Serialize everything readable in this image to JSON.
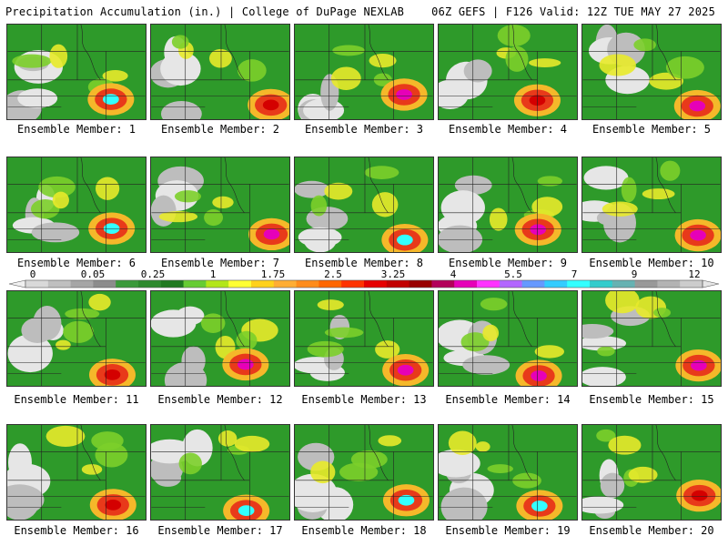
{
  "header": {
    "left_title": "Precipitation Accumulation (in.) | College of DuPage NEXLAB",
    "right_title": "06Z GEFS | F126 Valid: 12Z TUE MAY 27 2025"
  },
  "member_prefix": "Ensemble Member: ",
  "members": [
    {
      "label": "Ensemble Member: 1",
      "max_level": "cyan"
    },
    {
      "label": "Ensemble Member: 2",
      "max_level": "red"
    },
    {
      "label": "Ensemble Member: 3",
      "max_level": "magenta"
    },
    {
      "label": "Ensemble Member: 4",
      "max_level": "red"
    },
    {
      "label": "Ensemble Member: 5",
      "max_level": "magenta"
    },
    {
      "label": "Ensemble Member: 6",
      "max_level": "cyan"
    },
    {
      "label": "Ensemble Member: 7",
      "max_level": "magenta"
    },
    {
      "label": "Ensemble Member: 8",
      "max_level": "cyan"
    },
    {
      "label": "Ensemble Member: 9",
      "max_level": "magenta"
    },
    {
      "label": "Ensemble Member: 10",
      "max_level": "magenta"
    },
    {
      "label": "Ensemble Member: 11",
      "max_level": "red"
    },
    {
      "label": "Ensemble Member: 12",
      "max_level": "magenta"
    },
    {
      "label": "Ensemble Member: 13",
      "max_level": "magenta"
    },
    {
      "label": "Ensemble Member: 14",
      "max_level": "magenta"
    },
    {
      "label": "Ensemble Member: 15",
      "max_level": "magenta"
    },
    {
      "label": "Ensemble Member: 16",
      "max_level": "red"
    },
    {
      "label": "Ensemble Member: 17",
      "max_level": "cyan"
    },
    {
      "label": "Ensemble Member: 18",
      "max_level": "cyan"
    },
    {
      "label": "Ensemble Member: 19",
      "max_level": "cyan"
    },
    {
      "label": "Ensemble Member: 20",
      "max_level": "red"
    }
  ],
  "colorbar": {
    "labels": [
      "0",
      "0.05",
      "0.25",
      "1",
      "1.75",
      "2.5",
      "3.25",
      "4",
      "5.5",
      "7",
      "9",
      "12"
    ],
    "colors": [
      "#d9d9d9",
      "#bfbfbf",
      "#a6a6a6",
      "#8c8c8c",
      "#3a9a3a",
      "#2d8a2d",
      "#1f7a1f",
      "#66cc33",
      "#b3e619",
      "#ffff33",
      "#ffd11a",
      "#ffad33",
      "#ff8c1a",
      "#ff6600",
      "#ff3300",
      "#e60000",
      "#c20000",
      "#990000",
      "#b3005a",
      "#e600b8",
      "#ff33ff",
      "#b266ff",
      "#6699ff",
      "#33ccff",
      "#33ffff",
      "#33cccc",
      "#66b2b2",
      "#999999",
      "#b3b3b3",
      "#cccccc"
    ]
  }
}
